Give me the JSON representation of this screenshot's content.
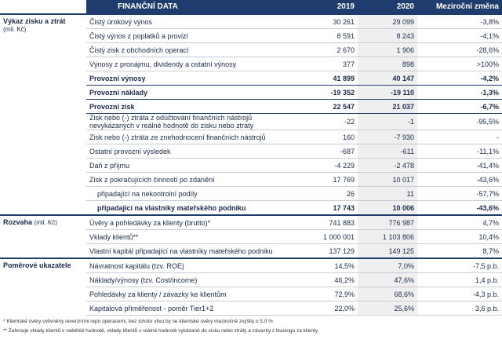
{
  "header": {
    "columns": [
      "FINANČNÍ DATA",
      "2019",
      "2020",
      "Meziroční změna"
    ]
  },
  "sections": [
    {
      "title": "Výkaz zisku a ztrát",
      "unit": "(mil. Kč)",
      "rows": [
        {
          "label": "Čistý úrokový výnos",
          "values": [
            "30 261",
            "29 099",
            "-3,8%"
          ]
        },
        {
          "label": "Čistý výnos z poplatků a provizí",
          "values": [
            "8 591",
            "8 243",
            "-4,1%"
          ]
        },
        {
          "label": "Čistý zisk z obchodních operací",
          "values": [
            "2 670",
            "1 906",
            "-28,6%"
          ]
        },
        {
          "label": "Výnosy z pronájmu, dividendy a ostatní výnosy",
          "values": [
            "377",
            "898",
            ">100%"
          ]
        },
        {
          "label": "Provozní výnosy",
          "values": [
            "41 899",
            "40 147",
            "-4,2%"
          ],
          "bold": true
        },
        {
          "label": "Provozní náklady",
          "values": [
            "-19 352",
            "-19 110",
            "-1,3%"
          ],
          "bold": true
        },
        {
          "label": "Provozní zisk",
          "values": [
            "22 547",
            "21 037",
            "-6,7%"
          ],
          "bold": true
        },
        {
          "label": "Zisk nebo (-) ztráta z odúčtování finančních nástrojů nevykázaných v reálné hodnotě do zisku nebo ztráty",
          "values": [
            "-22",
            "-1",
            "-95,5%"
          ]
        },
        {
          "label": "Zisk nebo (-) ztráta ze znehodnocení finančních nástrojů",
          "values": [
            "160",
            "-7 930",
            "-"
          ]
        },
        {
          "label": "Ostatní provozní výsledek",
          "values": [
            "-687",
            "-611",
            "-11,1%"
          ]
        },
        {
          "label": "Daň z příjmu",
          "values": [
            "-4 229",
            "-2 478",
            "-41,4%"
          ]
        },
        {
          "label": "Zisk z pokračujících činností po zdanění",
          "values": [
            "17 769",
            "10 017",
            "-43,6%"
          ]
        },
        {
          "label": "připadající na nekontrolní podíly",
          "values": [
            "26",
            "11",
            "-57,7%"
          ],
          "indent": true
        },
        {
          "label": "připadající na vlastníky mateřského podniku",
          "values": [
            "17 743",
            "10 006",
            "-43,6%"
          ],
          "indent": true,
          "bold": true
        }
      ]
    },
    {
      "title": "Rozvaha",
      "unit": "(mil. Kč)",
      "rows": [
        {
          "label": "Úvěry a pohledávky za klienty (brutto)*",
          "values": [
            "741 883",
            "776 987",
            "4,7%"
          ]
        },
        {
          "label": "Vklady klientů**",
          "values": [
            "1 000 001",
            "1 103 806",
            "10,4%"
          ]
        },
        {
          "label": "Vlastní kapitál připadající na vlastníky mateřského podniku",
          "values": [
            "137 129",
            "149 125",
            "8,7%"
          ]
        }
      ]
    },
    {
      "title": "Poměrové ukazatele",
      "rows": [
        {
          "label": "Návratnost kapitálu (tzv. ROE)",
          "values": [
            "14,5%",
            "7,0%",
            "-7,5 p.b."
          ]
        },
        {
          "label": "Náklady/výnosy (tzv. Cost/income)",
          "values": [
            "46,2%",
            "47,6%",
            "1,4 p.b."
          ]
        },
        {
          "label": "Pohledávky za klienty / závazky ke klientům",
          "values": [
            "72,9%",
            "68,6%",
            "-4,3 p.b."
          ]
        },
        {
          "label": "Kapitálová přiměřenost - poměr Tier1+2",
          "values": [
            "22,0%",
            "25,6%",
            "3,6 p.b."
          ]
        }
      ]
    }
  ],
  "footnotes": [
    "* Klientské úvěry ovlivněny reverzními repo operacemi, bez tohoto vlivu by se klientské úvěry meziročně zvýšily o 5,0 %",
    "** Zahrnuje vklady klientů v naběhlé hodnotě, vklady klientů v reálné hodnotě vykázané do zisku nebo ztráty a závazky z leasingu za klienty"
  ]
}
